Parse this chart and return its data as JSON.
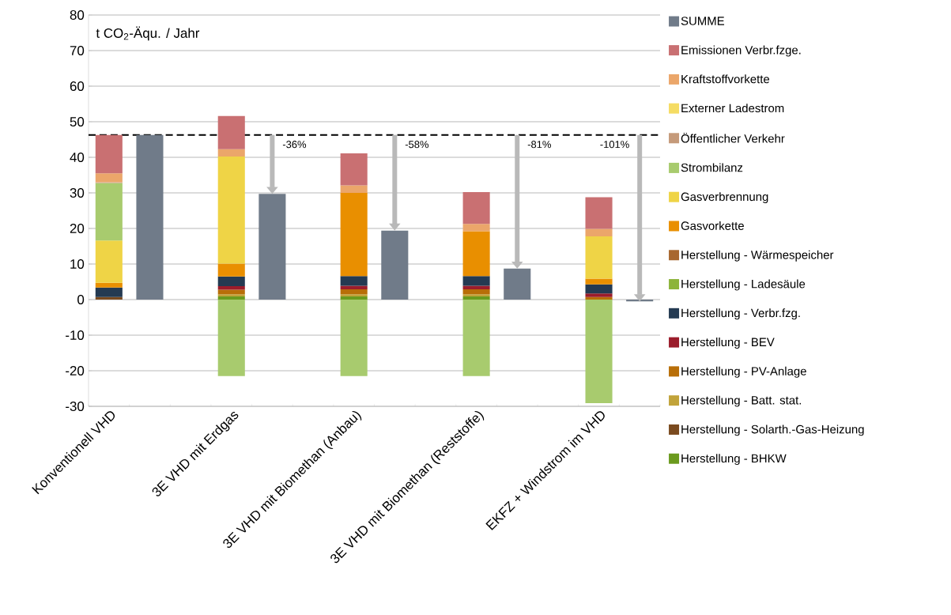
{
  "chart_data": {
    "type": "bar",
    "stacked": true,
    "ylabel": "t CO$_{2}$-Äqu. / Jahr",
    "categories": [
      "Konventionell VHD",
      null,
      null,
      "3E VHD mit Erdgas",
      null,
      null,
      "3E VHD mit Biomethan (Anbau)",
      null,
      null,
      "3E VHD mit Biomethan (Reststoffe)",
      null,
      null,
      "EKFZ + Windstrom im VHD",
      null
    ],
    "series": [
      {
        "name": "Herstellung - BHKW",
        "color": "#6b9a1e",
        "values": [
          null,
          null,
          null,
          0.9,
          null,
          null,
          0.9,
          null,
          null,
          0.9,
          null,
          null,
          null,
          null
        ]
      },
      {
        "name": "Herstellung - Solarth.-Gas-Heizung",
        "color": "#7a4a1f",
        "values": [
          0.7,
          null,
          null,
          null,
          null,
          null,
          null,
          null,
          null,
          null,
          null,
          null,
          null,
          null
        ]
      },
      {
        "name": "Herstellung - Batt. stat.",
        "color": "#c1a33a",
        "values": [
          null,
          null,
          null,
          0.6,
          null,
          null,
          0.6,
          null,
          null,
          0.6,
          null,
          null,
          null,
          null
        ]
      },
      {
        "name": "Herstellung - PV-Anlage",
        "color": "#b86e08",
        "values": [
          null,
          null,
          null,
          1.3,
          null,
          null,
          1.4,
          null,
          null,
          1.4,
          null,
          null,
          0.7,
          null
        ]
      },
      {
        "name": "Herstellung - BEV",
        "color": "#9b1c2b",
        "values": [
          null,
          null,
          null,
          1.0,
          null,
          null,
          1.0,
          null,
          null,
          1.0,
          null,
          null,
          1.0,
          null
        ]
      },
      {
        "name": "Herstellung - Verbr.fzg.",
        "color": "#243a52",
        "values": [
          2.7,
          null,
          null,
          2.7,
          null,
          null,
          2.7,
          null,
          null,
          2.7,
          null,
          null,
          2.6,
          null
        ]
      },
      {
        "name": "Herstellung - Ladesäule",
        "color": "#8cb43a",
        "values": [
          null,
          null,
          null,
          null,
          null,
          null,
          null,
          null,
          null,
          null,
          null,
          null,
          null,
          null
        ]
      },
      {
        "name": "Herstellung - Wärmespeicher",
        "color": "#a8672f",
        "values": [
          null,
          null,
          null,
          null,
          null,
          null,
          null,
          null,
          null,
          null,
          null,
          null,
          null,
          null
        ]
      },
      {
        "name": "Gasvorkette",
        "color": "#e98f00",
        "values": [
          1.3,
          null,
          null,
          3.6,
          null,
          null,
          23.4,
          null,
          null,
          12.6,
          null,
          null,
          1.6,
          null
        ]
      },
      {
        "name": "Gasverbrennung",
        "color": "#efd446",
        "values": [
          11.9,
          null,
          null,
          30.1,
          null,
          null,
          null,
          null,
          null,
          null,
          null,
          null,
          11.9,
          null
        ]
      },
      {
        "name": "Strombilanz",
        "color": "#a8cb6e",
        "values": [
          16.2,
          null,
          null,
          -21.5,
          null,
          null,
          -21.5,
          null,
          null,
          -21.5,
          null,
          null,
          -29.1,
          null
        ]
      },
      {
        "name": "Öffentlicher Verkehr",
        "color": "#c59a7a",
        "values": [
          0.2,
          null,
          null,
          null,
          null,
          null,
          null,
          null,
          null,
          null,
          null,
          null,
          null,
          null
        ]
      },
      {
        "name": "Externer Ladestrom",
        "color": "#f5dc63",
        "values": [
          null,
          null,
          null,
          null,
          null,
          null,
          null,
          null,
          null,
          null,
          null,
          null,
          null,
          null
        ]
      },
      {
        "name": "Kraftstoffvorkette",
        "color": "#eba66a",
        "values": [
          2.5,
          null,
          null,
          2.1,
          null,
          null,
          2.1,
          null,
          null,
          2.1,
          null,
          null,
          2.1,
          null
        ]
      },
      {
        "name": "Emissionen Verbr.fzge.",
        "color": "#c97072",
        "values": [
          10.8,
          null,
          null,
          9.3,
          null,
          null,
          9.0,
          null,
          null,
          8.9,
          null,
          null,
          8.9,
          null
        ]
      },
      {
        "name": "SUMME",
        "color": "#707b89",
        "values": [
          null,
          46.3,
          null,
          null,
          29.7,
          null,
          null,
          19.4,
          null,
          null,
          8.7,
          null,
          null,
          -0.5
        ]
      }
    ],
    "ylim": [
      -30,
      80
    ],
    "yticks": [
      -30,
      -20,
      -10,
      0,
      10,
      20,
      30,
      40,
      50,
      60,
      70,
      80
    ],
    "grid": "y",
    "legend": "right",
    "ref_lines": [
      {
        "axis": "y",
        "value": 46.3,
        "color": "#000000",
        "line_style": "dashed"
      }
    ],
    "annotations": [
      {
        "text": "-36%",
        "y": 46.3
      },
      {
        "text": "-58%",
        "y": 46.3
      },
      {
        "text": "-81%",
        "y": 46.3
      },
      {
        "text": "-101%",
        "y": 46.3
      }
    ]
  }
}
